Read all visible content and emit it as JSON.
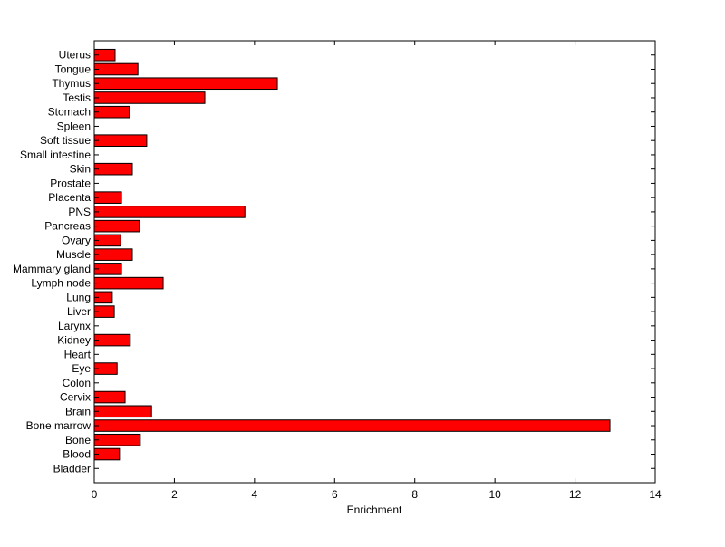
{
  "chart_data": {
    "type": "bar",
    "orientation": "horizontal",
    "title": "",
    "xlabel": "Enrichment",
    "ylabel": "",
    "xlim": [
      0,
      14
    ],
    "xticks": [
      0,
      2,
      4,
      6,
      8,
      10,
      12,
      14
    ],
    "grid": false,
    "bar_color": "#ff0000",
    "categories": [
      "Bladder",
      "Blood",
      "Bone",
      "Bone marrow",
      "Brain",
      "Cervix",
      "Colon",
      "Eye",
      "Heart",
      "Kidney",
      "Larynx",
      "Liver",
      "Lung",
      "Lymph node",
      "Mammary gland",
      "Muscle",
      "Ovary",
      "Pancreas",
      "PNS",
      "Placenta",
      "Prostate",
      "Skin",
      "Small intestine",
      "Soft tissue",
      "Spleen",
      "Stomach",
      "Testis",
      "Thymus",
      "Tongue",
      "Uterus"
    ],
    "values": [
      0,
      0.63,
      1.15,
      12.87,
      1.43,
      0.77,
      0,
      0.57,
      0,
      0.9,
      0,
      0.5,
      0.45,
      1.72,
      0.68,
      0.95,
      0.66,
      1.13,
      3.76,
      0.68,
      0,
      0.95,
      0,
      1.31,
      0,
      0.88,
      2.76,
      4.57,
      1.09,
      0.52
    ]
  }
}
